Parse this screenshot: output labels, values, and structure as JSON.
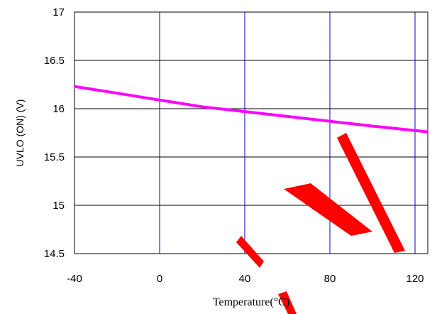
{
  "chart_data": {
    "type": "line",
    "title": "",
    "xlabel": "Temperature(°C)",
    "ylabel": "UVLO (ON) (V)",
    "xlim": [
      -40,
      126
    ],
    "ylim": [
      14.5,
      17
    ],
    "xticks": [
      -40,
      0,
      40,
      80,
      120
    ],
    "xtick_labels": [
      "-40",
      "0",
      "40",
      "80",
      "120"
    ],
    "yticks": [
      14.5,
      15,
      15.5,
      16,
      16.5,
      17
    ],
    "ytick_labels": [
      "14.5",
      "15",
      "15.5",
      "16",
      "16.5",
      "17"
    ],
    "grid": true,
    "vertical_grid_color": "#0000cc",
    "horizontal_grid_color": "#000000",
    "series": [
      {
        "color": "#ff00ff",
        "x": [
          -40,
          -20,
          0,
          20,
          40,
          60,
          80,
          100,
          126
        ],
        "y": [
          16.23,
          16.16,
          16.09,
          16.02,
          15.97,
          15.92,
          15.87,
          15.82,
          15.76
        ]
      }
    ],
    "watermark": {
      "color": "#ff0000"
    }
  }
}
